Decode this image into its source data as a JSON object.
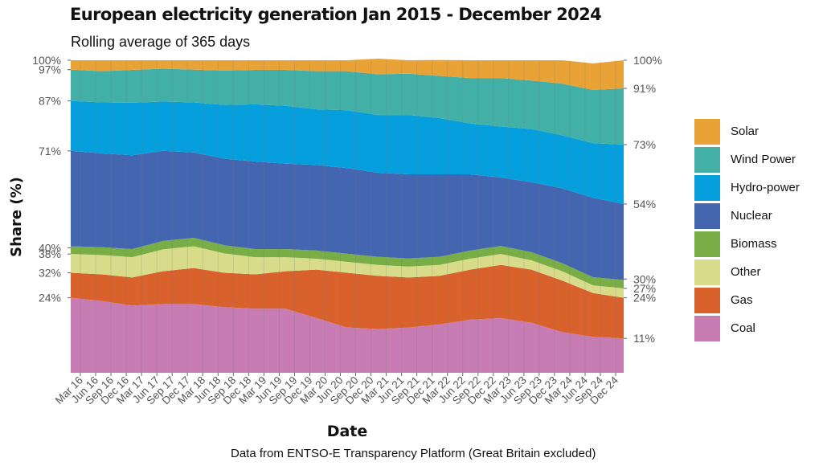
{
  "chart_data": {
    "type": "area",
    "stacked": true,
    "normalized": true,
    "title": "European electricity generation Jan 2015 - December 2024",
    "subtitle": "Rolling average of 365 days",
    "xlabel": "Date",
    "ylabel": "Share (%)",
    "caption": "Data from ENTSO-E Transparency Platform (Great Britain excluded)",
    "ylim": [
      0,
      100
    ],
    "x_tick_labels": [
      "Mar 16",
      "Jun 16",
      "Sep 16",
      "Dec 16",
      "Mar 17",
      "Jun 17",
      "Sep 17",
      "Dec 17",
      "Mar 18",
      "Jun 18",
      "Sep 18",
      "Dec 18",
      "Mar 19",
      "Jun 19",
      "Sep 19",
      "Dec 19",
      "Mar 20",
      "Jun 20",
      "Sep 20",
      "Dec 20",
      "Mar 21",
      "Jun 21",
      "Sep 21",
      "Dec 21",
      "Mar 22",
      "Jun 22",
      "Sep 22",
      "Dec 22",
      "Mar 23",
      "Jun 23",
      "Sep 23",
      "Dec 23",
      "Mar 24",
      "Jun 24",
      "Sep 24",
      "Dec 24"
    ],
    "left_axis_labels": [
      "100%",
      "97%",
      "87%",
      "71%",
      "40%",
      "38%",
      "32%",
      "24%"
    ],
    "left_axis_values": [
      100,
      97,
      87,
      71,
      40,
      38,
      32,
      24
    ],
    "right_axis_labels": [
      "100%",
      "91%",
      "73%",
      "54%",
      "30%",
      "27%",
      "24%",
      "11%"
    ],
    "right_axis_values": [
      100,
      91,
      73,
      54,
      30,
      27,
      24,
      11
    ],
    "legend_position": "right",
    "x": [
      "2016-01",
      "2016-06",
      "2016-12",
      "2017-06",
      "2017-12",
      "2018-06",
      "2018-12",
      "2019-06",
      "2019-12",
      "2020-06",
      "2020-12",
      "2021-06",
      "2021-12",
      "2022-06",
      "2022-12",
      "2023-06",
      "2023-12",
      "2024-06",
      "2024-12"
    ],
    "series": [
      {
        "name": "Coal",
        "color": "#C77CB3",
        "values": [
          24,
          23,
          21.5,
          22,
          22,
          21,
          20.5,
          20.5,
          17.5,
          14.5,
          14,
          14.5,
          15.5,
          17,
          17.5,
          16,
          13,
          11.5,
          11
        ]
      },
      {
        "name": "Gas",
        "color": "#D9612B",
        "values": [
          8,
          8.5,
          9,
          10.5,
          11.5,
          11,
          11,
          12,
          15.5,
          17.5,
          17,
          16,
          15.5,
          16,
          17,
          17,
          16.5,
          14,
          13
        ]
      },
      {
        "name": "Other",
        "color": "#D8DC8A",
        "values": [
          6,
          6.2,
          6.5,
          7,
          7,
          6.2,
          5.5,
          4.5,
          3.5,
          3.5,
          3.5,
          3.5,
          3.5,
          3.5,
          3.5,
          3,
          3,
          2.5,
          3
        ]
      },
      {
        "name": "Biomass",
        "color": "#79AD45",
        "values": [
          2.5,
          2.5,
          2.6,
          2.7,
          2.7,
          2.6,
          2.6,
          2.6,
          2.6,
          2.6,
          2.6,
          2.6,
          2.6,
          2.6,
          2.6,
          2.6,
          2.6,
          2.6,
          2.7
        ]
      },
      {
        "name": "Nuclear",
        "color": "#4466B1",
        "values": [
          30.5,
          30,
          30,
          28.8,
          27.3,
          27.7,
          28,
          27.3,
          27.4,
          27.4,
          26.9,
          26.9,
          26.4,
          24.4,
          21.9,
          22.4,
          23.9,
          25.4,
          24.3
        ]
      },
      {
        "name": "Hydro-power",
        "color": "#069FDE",
        "values": [
          16,
          16.3,
          16.8,
          15.8,
          16,
          17.2,
          18.3,
          18.5,
          17.8,
          18.5,
          18.5,
          19,
          18,
          16.3,
          16.3,
          17,
          17,
          17.5,
          19
        ]
      },
      {
        "name": "Wind Power",
        "color": "#43B0A8",
        "values": [
          10,
          10,
          10.5,
          10.5,
          10.5,
          11,
          11,
          11.5,
          12.2,
          12.5,
          13,
          13.2,
          13.5,
          14.5,
          15.5,
          15.5,
          16.5,
          17,
          18
        ]
      },
      {
        "name": "Solar",
        "color": "#E8A236",
        "values": [
          3,
          3.5,
          3.1,
          2.7,
          3,
          3.3,
          3.1,
          3.1,
          3.5,
          3.5,
          5,
          4.3,
          5.1,
          5.7,
          5.7,
          6.5,
          7.5,
          8.5,
          9
        ]
      }
    ]
  },
  "legend_order": [
    "Solar",
    "Wind Power",
    "Hydro-power",
    "Nuclear",
    "Biomass",
    "Other",
    "Gas",
    "Coal"
  ]
}
